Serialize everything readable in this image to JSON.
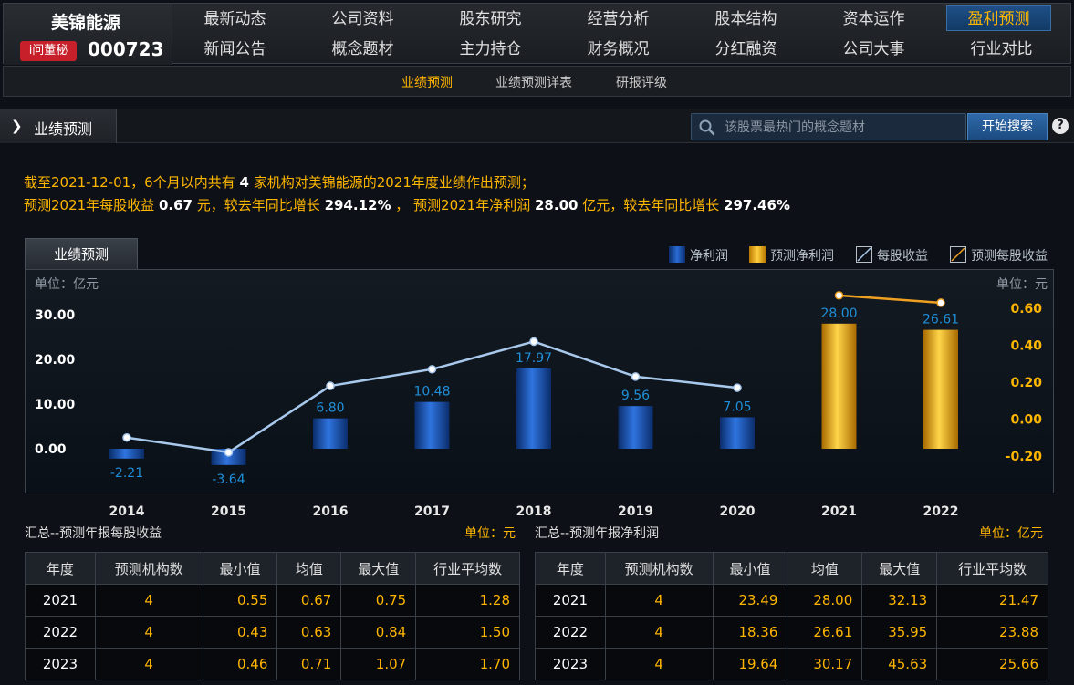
{
  "header": {
    "company_name": "美锦能源",
    "wendongmi": "i问董秘",
    "stock_code": "000723",
    "nav_row1": [
      "最新动态",
      "公司资料",
      "股东研究",
      "经营分析",
      "股本结构",
      "资本运作",
      "盈利预测"
    ],
    "nav_row2": [
      "新闻公告",
      "概念题材",
      "主力持仓",
      "财务概况",
      "分红融资",
      "公司大事",
      "行业对比"
    ],
    "active_nav": "盈利预测"
  },
  "sub_nav": {
    "items": [
      "业绩预测",
      "业绩预测详表",
      "研报评级"
    ],
    "active": "业绩预测"
  },
  "section": {
    "title": "业绩预测",
    "search_placeholder": "该股票最热门的概念题材",
    "search_button": "开始搜索",
    "help": "?"
  },
  "summary": {
    "l1_a": "截至2021-12-01，6个月以内共有",
    "l1_num": "4",
    "l1_b": "家机构对美锦能源的2021年度业绩作出预测；",
    "l2_a": "预测2021年每股收益",
    "l2_eps": "0.67",
    "l2_b": "元，较去年同比增长",
    "l2_eps_g": "294.12%",
    "l2_c": "，  预测2021年净利润",
    "l2_np": "28.00",
    "l2_d": "亿元，较去年同比增长",
    "l2_np_g": "297.46%"
  },
  "chart_tab": "业绩预测",
  "legend": {
    "net_profit": "净利润",
    "forecast_net_profit": "预测净利润",
    "eps": "每股收益",
    "forecast_eps": "预测每股收益"
  },
  "colors": {
    "net_profit": "#1a4fa3",
    "forecast": "#f2a900",
    "eps_line": "#a8c8ec",
    "forecast_eps_line": "#f0a020",
    "accent": "#ffb600"
  },
  "chart_data": {
    "type": "bar",
    "categories": [
      "2014",
      "2015",
      "2016",
      "2017",
      "2018",
      "2019",
      "2020",
      "2021",
      "2022"
    ],
    "left_unit": "单位：亿元",
    "right_unit": "单位：元",
    "ylim_left": [
      -5,
      35
    ],
    "yticks_left": [
      "0.00",
      "10.00",
      "20.00",
      "30.00"
    ],
    "ylim_right": [
      -0.3,
      0.7
    ],
    "yticks_right": [
      "-0.20",
      "0.00",
      "0.20",
      "0.40",
      "0.60"
    ],
    "series": [
      {
        "name": "净利润",
        "kind": "bar",
        "values": [
          -2.21,
          -3.64,
          6.8,
          10.48,
          17.97,
          9.56,
          7.05,
          null,
          null
        ]
      },
      {
        "name": "预测净利润",
        "kind": "bar",
        "values": [
          null,
          null,
          null,
          null,
          null,
          null,
          null,
          28.0,
          26.61
        ]
      },
      {
        "name": "每股收益",
        "kind": "line",
        "axis": "right",
        "values": [
          -0.1,
          -0.18,
          0.18,
          0.27,
          0.42,
          0.23,
          0.17,
          null,
          null
        ]
      },
      {
        "name": "预测每股收益",
        "kind": "line",
        "axis": "right",
        "values": [
          null,
          null,
          null,
          null,
          null,
          null,
          null,
          0.67,
          0.63
        ]
      }
    ],
    "bar_labels": [
      "-2.21",
      "-3.64",
      "6.80",
      "10.48",
      "17.97",
      "9.56",
      "7.05",
      "28.00",
      "26.61"
    ]
  },
  "eps_table": {
    "title": "汇总--预测年报每股收益",
    "unit": "单位：元",
    "headers": [
      "年度",
      "预测机构数",
      "最小值",
      "均值",
      "最大值",
      "行业平均数"
    ],
    "rows": [
      [
        "2021",
        "4",
        "0.55",
        "0.67",
        "0.75",
        "1.28"
      ],
      [
        "2022",
        "4",
        "0.43",
        "0.63",
        "0.84",
        "1.50"
      ],
      [
        "2023",
        "4",
        "0.46",
        "0.71",
        "1.07",
        "1.70"
      ]
    ]
  },
  "np_table": {
    "title": "汇总--预测年报净利润",
    "unit": "单位：亿元",
    "headers": [
      "年度",
      "预测机构数",
      "最小值",
      "均值",
      "最大值",
      "行业平均数"
    ],
    "rows": [
      [
        "2021",
        "4",
        "23.49",
        "28.00",
        "32.13",
        "21.47"
      ],
      [
        "2022",
        "4",
        "18.36",
        "26.61",
        "35.95",
        "23.88"
      ],
      [
        "2023",
        "4",
        "19.64",
        "30.17",
        "45.63",
        "25.66"
      ]
    ]
  }
}
